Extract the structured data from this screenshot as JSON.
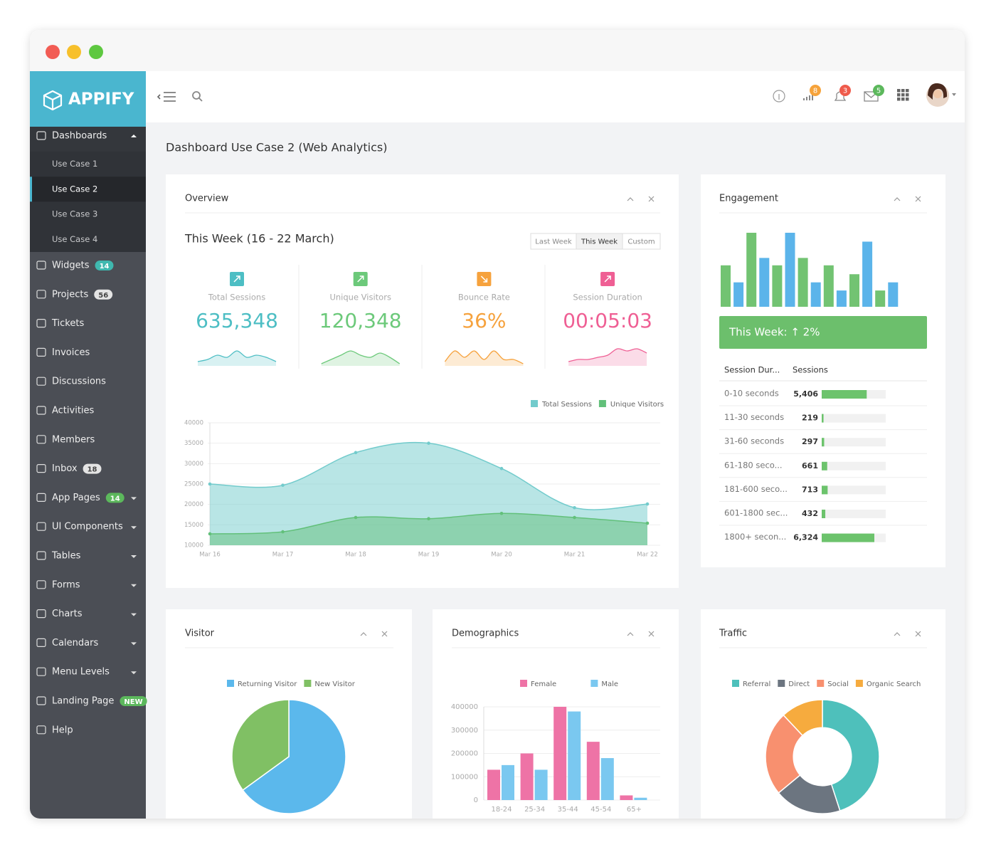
{
  "brand": "APPIFY",
  "sidebar": {
    "items": [
      {
        "label": "Dashboards",
        "expanded": true,
        "children": [
          "Use Case 1",
          "Use Case 2",
          "Use Case 3",
          "Use Case 4"
        ],
        "active_child": 1
      },
      {
        "label": "Widgets",
        "badge": 14,
        "badge_color": "#3fb8af"
      },
      {
        "label": "Projects",
        "badge": 56,
        "badge_color": "#e4e4e4"
      },
      {
        "label": "Tickets"
      },
      {
        "label": "Invoices"
      },
      {
        "label": "Discussions"
      },
      {
        "label": "Activities"
      },
      {
        "label": "Members"
      },
      {
        "label": "Inbox",
        "badge": 18,
        "badge_color": "#e4e4e4"
      },
      {
        "label": "App Pages",
        "badge": 14,
        "badge_color": "#5cb85c",
        "submenu": true
      },
      {
        "label": "UI Components",
        "submenu": true
      },
      {
        "label": "Tables",
        "submenu": true
      },
      {
        "label": "Forms",
        "submenu": true
      },
      {
        "label": "Charts",
        "submenu": true
      },
      {
        "label": "Calendars",
        "submenu": true
      },
      {
        "label": "Menu Levels",
        "submenu": true
      },
      {
        "label": "Landing Page",
        "badge": "NEW",
        "badge_color": "#5cb85c"
      },
      {
        "label": "Help"
      }
    ]
  },
  "header": {
    "notifications": [
      {
        "count": 8,
        "color": "#f6a33b"
      },
      {
        "count": 3,
        "color": "#ef5b4c"
      },
      {
        "count": 5,
        "color": "#5cb85c"
      }
    ]
  },
  "page_title": "Dashboard Use Case 2 (Web Analytics)",
  "overview": {
    "title": "Overview",
    "period": "This Week (16 - 22 March)",
    "ranges": [
      "Last Week",
      "This Week",
      "Custom"
    ],
    "selected_range": 1,
    "stats": [
      {
        "label": "Total Sessions",
        "value": "635,348",
        "color": "#4dbec4",
        "spark": {
          "values": [
            2,
            3,
            5,
            4,
            7,
            4,
            5,
            4,
            2
          ],
          "ylim": [
            0,
            10
          ]
        }
      },
      {
        "label": "Unique Visitors",
        "value": "120,348",
        "color": "#6cc97a",
        "spark": {
          "values": [
            1,
            3,
            5,
            7,
            5,
            4,
            6,
            4,
            1
          ],
          "ylim": [
            0,
            10
          ]
        }
      },
      {
        "label": "Bounce Rate",
        "value": "36%",
        "color": "#f6a23d",
        "spark": {
          "values": [
            2,
            7,
            4,
            7,
            3,
            7,
            3,
            3,
            1
          ],
          "ylim": [
            0,
            10
          ]
        }
      },
      {
        "label": "Session Duration",
        "value": "00:05:03",
        "color": "#ef5f94",
        "spark": {
          "values": [
            2,
            3,
            3,
            4,
            5,
            8,
            7,
            8,
            6
          ],
          "ylim": [
            0,
            10
          ]
        }
      }
    ],
    "chart": {
      "type": "area",
      "x": [
        "Mar 16",
        "Mar 17",
        "Mar 18",
        "Mar 19",
        "Mar 20",
        "Mar 21",
        "Mar 22"
      ],
      "ylim": [
        10000,
        40000
      ],
      "yticks": [
        10000,
        15000,
        20000,
        25000,
        30000,
        35000,
        40000
      ],
      "grid": true,
      "series": [
        {
          "name": "Total Sessions",
          "color": "#72cbcc",
          "values": [
            25000,
            24700,
            32700,
            35000,
            28800,
            19200,
            20100
          ]
        },
        {
          "name": "Unique Visitors",
          "color": "#62c07a",
          "values": [
            12800,
            13300,
            16800,
            16500,
            17800,
            16800,
            15400
          ]
        }
      ]
    }
  },
  "engagement": {
    "title": "Engagement",
    "chart": {
      "type": "bar",
      "values": [
        56,
        33,
        100,
        66,
        56,
        100,
        66,
        33,
        56,
        22,
        44,
        88,
        22,
        33
      ],
      "colors": [
        "#72c372",
        "#5bb4ea",
        "#72c372",
        "#5bb4ea",
        "#72c372",
        "#5bb4ea",
        "#72c372",
        "#5bb4ea",
        "#72c372",
        "#5bb4ea",
        "#72c372",
        "#5bb4ea",
        "#72c372",
        "#5bb4ea"
      ]
    },
    "banner": "This Week: ↑ 2%",
    "table": {
      "headers": [
        "Session Dur...",
        "Sessions"
      ],
      "bar_color": "#6cc36c",
      "rows": [
        {
          "duration": "0-10 seconds",
          "value": 5406,
          "value_label": "5,406"
        },
        {
          "duration": "11-30 seconds",
          "value": 219,
          "value_label": "219"
        },
        {
          "duration": "31-60 seconds",
          "value": 297,
          "value_label": "297"
        },
        {
          "duration": "61-180 seco...",
          "value": 661,
          "value_label": "661"
        },
        {
          "duration": "181-600 seco...",
          "value": 713,
          "value_label": "713"
        },
        {
          "duration": "601-1800 sec...",
          "value": 432,
          "value_label": "432"
        },
        {
          "duration": "1800+ secon...",
          "value": 6324,
          "value_label": "6,324"
        }
      ]
    }
  },
  "visitor": {
    "title": "Visitor",
    "chart": {
      "type": "pie",
      "categories": [
        "Returning Visitor",
        "New Visitor"
      ],
      "values": [
        65,
        35
      ],
      "colors": [
        "#5bb8ec",
        "#80c064"
      ]
    }
  },
  "demographics": {
    "title": "Demographics",
    "chart": {
      "type": "bar",
      "categories": [
        "18-24",
        "25-34",
        "35-44",
        "45-54",
        "65+"
      ],
      "ylim": [
        0,
        400000
      ],
      "yticks": [
        0,
        100000,
        200000,
        300000,
        400000
      ],
      "series": [
        {
          "name": "Female",
          "color": "#ee73a6",
          "values": [
            130000,
            200000,
            400000,
            250000,
            20000
          ]
        },
        {
          "name": "Male",
          "color": "#7ac8f0",
          "values": [
            150000,
            130000,
            380000,
            180000,
            10000
          ]
        }
      ]
    }
  },
  "traffic": {
    "title": "Traffic",
    "chart": {
      "type": "doughnut",
      "categories": [
        "Referral",
        "Direct",
        "Social",
        "Organic Search"
      ],
      "values": [
        45,
        19,
        24,
        12
      ],
      "colors": [
        "#4ec0bb",
        "#6c7580",
        "#f8906f",
        "#f6ab3e"
      ]
    }
  }
}
